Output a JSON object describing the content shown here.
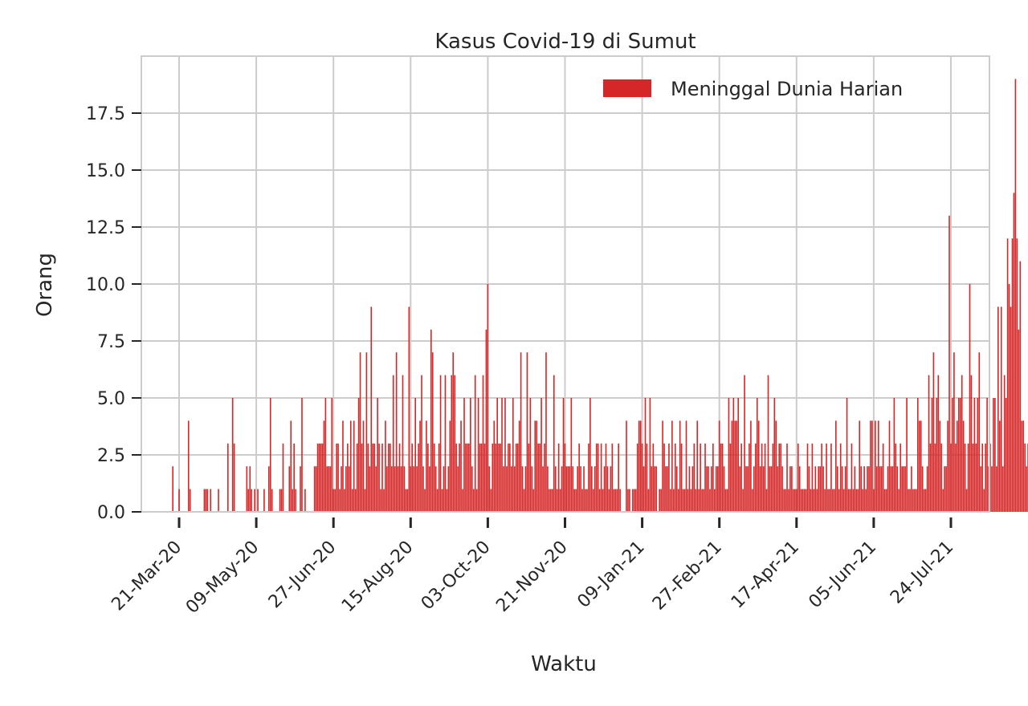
{
  "chart_data": {
    "type": "bar",
    "title": "Kasus Covid-19 di Sumut",
    "xlabel": "Waktu",
    "ylabel": "Orang",
    "start_date": "2020-03-05",
    "ylim": [
      0,
      19.8
    ],
    "yticks": [
      0.0,
      2.5,
      5.0,
      7.5,
      10.0,
      12.5,
      15.0,
      17.5
    ],
    "ytick_labels": [
      "0.0",
      "2.5",
      "5.0",
      "7.5",
      "10.0",
      "12.5",
      "15.0",
      "17.5"
    ],
    "xtick_labels": [
      "21-Mar-20",
      "09-May-20",
      "27-Jun-20",
      "15-Aug-20",
      "03-Oct-20",
      "21-Nov-20",
      "09-Jan-21",
      "27-Feb-21",
      "17-Apr-21",
      "05-Jun-21",
      "24-Jul-21"
    ],
    "xtick_day_offsets": [
      16,
      65,
      114,
      163,
      212,
      261,
      310,
      359,
      408,
      457,
      506
    ],
    "grid": true,
    "legend_position": "top-right",
    "color": "#d62728",
    "series": [
      {
        "name": "Meninggal Dunia Harian",
        "values": [
          0,
          0,
          0,
          0,
          0,
          0,
          0,
          0,
          0,
          0,
          0,
          0,
          2,
          0,
          0,
          0,
          1,
          0,
          0,
          0,
          0,
          0,
          4,
          1,
          0,
          0,
          0,
          0,
          0,
          0,
          0,
          0,
          1,
          1,
          1,
          0,
          1,
          0,
          0,
          0,
          0,
          1,
          0,
          0,
          0,
          0,
          0,
          3,
          0,
          0,
          5,
          3,
          0,
          0,
          0,
          0,
          0,
          0,
          0,
          2,
          1,
          2,
          1,
          0,
          1,
          0,
          1,
          0,
          0,
          0,
          1,
          0,
          0,
          2,
          5,
          1,
          0,
          0,
          0,
          0,
          1,
          1,
          3,
          0,
          0,
          0,
          2,
          4,
          1,
          3,
          1,
          0,
          0,
          2,
          5,
          0,
          1,
          0,
          0,
          0,
          0,
          0,
          2,
          2,
          3,
          3,
          3,
          3,
          4,
          5,
          2,
          2,
          2,
          5,
          1,
          1,
          3,
          3,
          1,
          2,
          4,
          1,
          2,
          3,
          2,
          4,
          1,
          4,
          1,
          3,
          5,
          7,
          3,
          4,
          1,
          7,
          3,
          2,
          9,
          3,
          3,
          2,
          5,
          3,
          1,
          3,
          1,
          4,
          2,
          3,
          3,
          2,
          6,
          2,
          7,
          2,
          3,
          2,
          6,
          2,
          1,
          1,
          9,
          2,
          3,
          2,
          5,
          2,
          3,
          4,
          6,
          2,
          1,
          4,
          3,
          2,
          8,
          7,
          3,
          2,
          1,
          3,
          6,
          1,
          2,
          6,
          1,
          2,
          4,
          6,
          7,
          6,
          3,
          2,
          3,
          4,
          1,
          5,
          3,
          3,
          3,
          5,
          2,
          1,
          6,
          1,
          5,
          3,
          3,
          6,
          3,
          8,
          10,
          2,
          1,
          3,
          4,
          3,
          5,
          3,
          3,
          5,
          2,
          5,
          2,
          3,
          3,
          2,
          5,
          2,
          3,
          3,
          4,
          7,
          2,
          1,
          2,
          7,
          3,
          5,
          2,
          1,
          4,
          4,
          3,
          3,
          5,
          2,
          3,
          7,
          2,
          1,
          1,
          1,
          6,
          2,
          1,
          3,
          1,
          2,
          5,
          3,
          2,
          2,
          2,
          5,
          2,
          1,
          1,
          2,
          3,
          2,
          1,
          2,
          1,
          1,
          3,
          5,
          2,
          1,
          2,
          3,
          3,
          1,
          3,
          1,
          2,
          3,
          2,
          1,
          2,
          3,
          1,
          1,
          1,
          3,
          1,
          0,
          0,
          0,
          4,
          1,
          1,
          0,
          1,
          1,
          1,
          3,
          4,
          4,
          3,
          2,
          5,
          3,
          1,
          5,
          2,
          3,
          2,
          2,
          0,
          1,
          1,
          4,
          3,
          2,
          2,
          3,
          1,
          4,
          1,
          3,
          2,
          1,
          4,
          3,
          1,
          1,
          4,
          1,
          2,
          1,
          2,
          3,
          1,
          4,
          1,
          3,
          1,
          1,
          3,
          2,
          2,
          1,
          2,
          3,
          1,
          2,
          2,
          4,
          3,
          3,
          2,
          1,
          1,
          5,
          3,
          4,
          5,
          4,
          4,
          5,
          2,
          3,
          1,
          6,
          2,
          2,
          3,
          4,
          1,
          2,
          3,
          5,
          4,
          2,
          3,
          2,
          3,
          1,
          6,
          2,
          2,
          3,
          5,
          4,
          2,
          3,
          3,
          2,
          1,
          1,
          3,
          1,
          2,
          2,
          1,
          1,
          1,
          3,
          2,
          1,
          1,
          1,
          1,
          3,
          2,
          1,
          3,
          1,
          2,
          1,
          2,
          2,
          3,
          2,
          1,
          3,
          1,
          1,
          3,
          1,
          1,
          4,
          2,
          1,
          3,
          2,
          1,
          2,
          5,
          1,
          1,
          3,
          1,
          2,
          1,
          1,
          4,
          2,
          1,
          2,
          1,
          2,
          2,
          4,
          4,
          1,
          4,
          2,
          4,
          2,
          2,
          3,
          1,
          1,
          2,
          4,
          2,
          2,
          5,
          3,
          2,
          1,
          3,
          2,
          2,
          2,
          5,
          1,
          1,
          2,
          1,
          1,
          1,
          5,
          4,
          4,
          2,
          1,
          1,
          2,
          6,
          3,
          5,
          7,
          3,
          5,
          6,
          4,
          3,
          1,
          2,
          2,
          4,
          13,
          3,
          5,
          7,
          3,
          4,
          5,
          5,
          6,
          4,
          3,
          1,
          3,
          10,
          6,
          3,
          5,
          3,
          5,
          7,
          2,
          3,
          1,
          3,
          5,
          2,
          3,
          2,
          5,
          5,
          2,
          9,
          4,
          9,
          2,
          6,
          5,
          12,
          10,
          9,
          12,
          14,
          19,
          12,
          8,
          11,
          4,
          4,
          3,
          2,
          3
        ]
      }
    ]
  }
}
